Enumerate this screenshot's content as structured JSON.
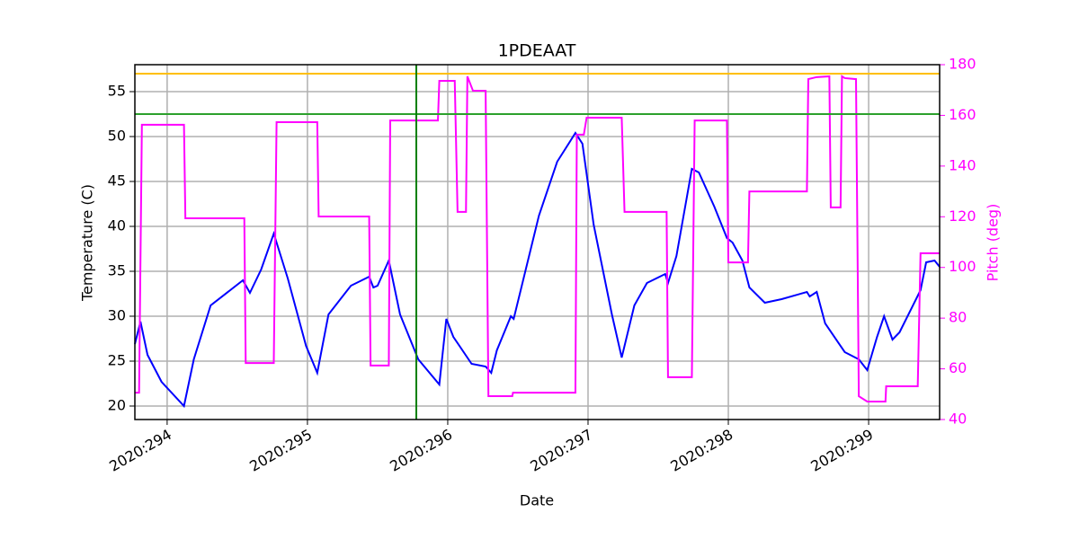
{
  "chart_data": {
    "type": "line",
    "title": "1PDEAAT",
    "xlabel": "Date",
    "ylabel": "Temperature (C)",
    "y2label": "Pitch (deg)",
    "xlim": [
      293.77,
      299.506
    ],
    "xticks": [
      {
        "value": 294,
        "label": "2020:294"
      },
      {
        "value": 295,
        "label": "2020:295"
      },
      {
        "value": 296,
        "label": "2020:296"
      },
      {
        "value": 297,
        "label": "2020:297"
      },
      {
        "value": 298,
        "label": "2020:298"
      },
      {
        "value": 299,
        "label": "2020:299"
      }
    ],
    "ylim": [
      18.5,
      58
    ],
    "yticks": [
      20,
      25,
      30,
      35,
      40,
      45,
      50,
      55
    ],
    "y2lim": [
      40,
      180
    ],
    "y2ticks": [
      40,
      60,
      80,
      100,
      120,
      140,
      160,
      180
    ],
    "grid": true,
    "y2color": "#ff00ff",
    "hlines": [
      {
        "value": 57,
        "color": "#ffbf00"
      },
      {
        "value": 52.5,
        "color": "#2ca02c"
      }
    ],
    "vlines": [
      {
        "value": 295.776,
        "color": "#008000"
      }
    ],
    "series": [
      {
        "color": "#0000ff",
        "x": [
          293.77,
          293.81,
          293.86,
          293.96,
          294.12,
          294.19,
          294.31,
          294.54,
          294.59,
          294.67,
          294.76,
          294.86,
          294.99,
          295.07,
          295.15,
          295.31,
          295.44,
          295.47,
          295.5,
          295.58,
          295.66,
          295.79,
          295.94,
          295.99,
          296.04,
          296.17,
          296.27,
          296.31,
          296.35,
          296.45,
          296.47,
          296.65,
          296.78,
          296.91,
          296.96,
          297.04,
          297.17,
          297.24,
          297.33,
          297.42,
          297.55,
          297.57,
          297.63,
          297.74,
          297.79,
          297.9,
          297.99,
          298.03,
          298.1,
          298.15,
          298.26,
          298.38,
          298.56,
          298.58,
          298.63,
          298.69,
          298.83,
          298.93,
          298.99,
          299.06,
          299.11,
          299.17,
          299.22,
          299.37,
          299.41,
          299.47,
          299.506
        ],
        "values": [
          26.9,
          29.4,
          25.7,
          22.7,
          20.0,
          25.2,
          31.2,
          34.0,
          32.6,
          35.2,
          39.2,
          34.2,
          26.7,
          23.7,
          30.2,
          33.4,
          34.4,
          33.2,
          33.4,
          36.2,
          30.2,
          25.2,
          22.4,
          29.7,
          27.7,
          24.7,
          24.4,
          23.7,
          26.2,
          30.0,
          29.7,
          41.2,
          47.2,
          50.4,
          49.2,
          40.2,
          30.2,
          25.4,
          31.2,
          33.7,
          34.7,
          33.7,
          36.7,
          46.4,
          46.0,
          42.2,
          38.7,
          38.2,
          36.2,
          33.2,
          31.5,
          31.9,
          32.7,
          32.2,
          32.7,
          29.2,
          26.0,
          25.2,
          24.0,
          27.7,
          30.0,
          27.4,
          28.2,
          32.9,
          36.0,
          36.2,
          35.5
        ]
      },
      {
        "color": "#ff00ff",
        "axis": "y2",
        "x": [
          293.77,
          293.8,
          293.82,
          294.12,
          294.13,
          294.55,
          294.56,
          294.76,
          294.78,
          295.07,
          295.08,
          295.44,
          295.45,
          295.58,
          295.59,
          295.93,
          295.94,
          296.05,
          296.07,
          296.13,
          296.14,
          296.18,
          296.27,
          296.29,
          296.46,
          296.465,
          296.91,
          296.92,
          296.97,
          296.99,
          297.24,
          297.26,
          297.56,
          297.57,
          297.74,
          297.76,
          297.99,
          298.0,
          298.14,
          298.15,
          298.56,
          298.57,
          298.63,
          298.72,
          298.73,
          298.8,
          298.81,
          298.83,
          298.91,
          298.93,
          298.99,
          299.12,
          299.125,
          299.35,
          299.37,
          299.506
        ],
        "values": [
          50.6,
          50.6,
          156.3,
          156.3,
          119.4,
          119.4,
          62.3,
          62.3,
          157.3,
          157.3,
          120.1,
          120.1,
          61.3,
          61.3,
          158.0,
          158.0,
          173.6,
          173.6,
          121.9,
          121.9,
          175.4,
          169.7,
          169.7,
          49.2,
          49.2,
          50.6,
          50.6,
          152.4,
          152.4,
          159.1,
          159.1,
          121.9,
          121.9,
          56.7,
          56.7,
          158.0,
          158.0,
          102.0,
          102.0,
          130.0,
          130.0,
          174.3,
          175.1,
          175.4,
          123.7,
          123.7,
          175.4,
          174.7,
          174.3,
          49.2,
          47.1,
          47.1,
          53.1,
          53.1,
          105.6,
          105.6
        ]
      }
    ]
  }
}
